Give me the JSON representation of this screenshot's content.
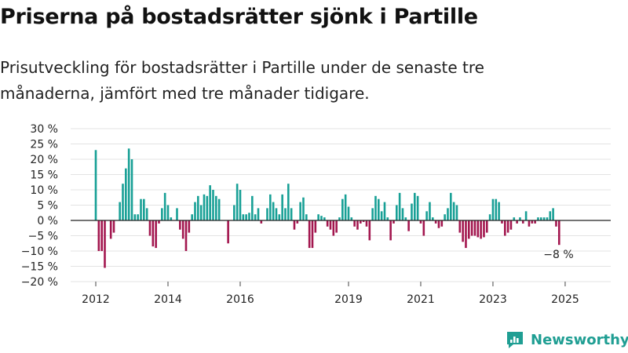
{
  "title": "Priserna på bostadsrätter sjönk i Partille",
  "subtitle": "Prisutveckling för bostadsrätter i Partille under de senaste tre månaderna, jämfört med tre månader tidigare.",
  "brand": {
    "name": "Newsworthy",
    "color": "#1f9e93"
  },
  "colors": {
    "positive": "#18a096",
    "negative": "#a3174f",
    "grid": "#e3e3e3",
    "zero": "#222222"
  },
  "chart_data": {
    "type": "bar",
    "title": "Priserna på bostadsrätter sjönk i Partille",
    "subtitle": "Prisutveckling för bostadsrätter i Partille under de senaste tre månaderna, jämfört med tre månader tidigare.",
    "xlabel": "",
    "ylabel": "",
    "unit": "%",
    "ylim": [
      -20,
      30
    ],
    "yticks": [
      30,
      25,
      20,
      15,
      10,
      5,
      0,
      -5,
      -10,
      -15,
      -20
    ],
    "ytick_labels": [
      "30 %",
      "25 %",
      "20 %",
      "15 %",
      "10 %",
      "5 %",
      "0 %",
      "−5 %",
      "−10 %",
      "−15 %",
      "−20 %"
    ],
    "xticks": [
      2012,
      2014,
      2016,
      2019,
      2021,
      2023,
      2025
    ],
    "start": "2012-01",
    "frequency": "monthly",
    "grid": true,
    "legend": "none",
    "values": [
      23,
      -10,
      -10,
      -15.5,
      0,
      -6,
      -4,
      0,
      6,
      12,
      17,
      23.5,
      20,
      2,
      2,
      7,
      7,
      4,
      -5,
      -8.5,
      -9,
      -1,
      4,
      9,
      5,
      1,
      0,
      4,
      -3,
      -6,
      -10,
      -4,
      2,
      6,
      8,
      5,
      8.5,
      8,
      11.5,
      10,
      8,
      7,
      0,
      0,
      -7.5,
      0,
      5,
      12,
      10,
      2,
      2,
      2.5,
      8,
      2,
      4,
      -1,
      0,
      4,
      8.5,
      6,
      4,
      2,
      8.5,
      4,
      12,
      4,
      -3,
      -1,
      6,
      7.5,
      2,
      -9,
      -9,
      -4,
      2,
      1.5,
      1,
      -2,
      -3,
      -5,
      -4,
      1,
      7,
      8.5,
      4.5,
      1,
      -2,
      -3,
      -1,
      -0.5,
      -2,
      -6.5,
      4,
      8,
      7,
      3,
      6,
      1,
      -6.5,
      -1,
      5,
      9,
      4,
      1,
      -3.5,
      5.5,
      9,
      8,
      -1,
      -5,
      3,
      6,
      1,
      -1,
      -2.5,
      -2,
      2,
      4,
      9,
      6,
      5,
      -4,
      -7,
      -9,
      -6,
      -5,
      -5,
      -5.5,
      -6,
      -5.5,
      -4,
      2,
      7,
      7,
      6,
      -1,
      -5,
      -4,
      -3,
      1,
      -1,
      1,
      -1,
      3,
      -2,
      -1,
      -1,
      1,
      1,
      1,
      1,
      3,
      4,
      -2,
      -8
    ],
    "annotations": [
      {
        "text": "−8 %",
        "target": "last"
      }
    ]
  }
}
